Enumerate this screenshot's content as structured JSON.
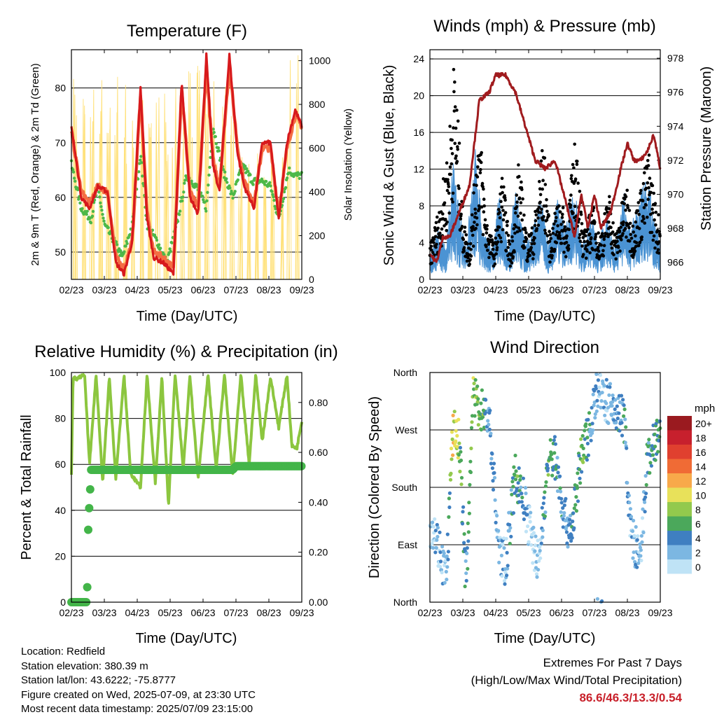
{
  "chart_data": [
    {
      "type": "line",
      "title": "Temperature (F)",
      "xlabel": "Time (Day/UTC)",
      "ylabel": "2m & 9m T (Red, Orange) & 2m Td (Green)",
      "y2label": "Solar Insolation (Yellow)",
      "ylim": [
        45,
        87
      ],
      "y2lim": [
        0,
        1050
      ],
      "xticks": [
        "02/23",
        "03/23",
        "04/23",
        "05/23",
        "06/23",
        "07/23",
        "08/23",
        "09/23"
      ],
      "yticks": [
        50,
        60,
        70,
        80
      ],
      "y2ticks": [
        0,
        200,
        400,
        600,
        800,
        1000
      ],
      "grid": true,
      "series": [
        {
          "name": "2m T",
          "color": "#d7191c",
          "x": [
            0,
            0.3,
            0.55,
            0.8,
            1.1,
            1.35,
            1.6,
            1.85,
            2.1,
            2.3,
            2.5,
            2.8,
            3.1,
            3.35,
            3.6,
            3.85,
            4.1,
            4.3,
            4.5,
            4.8,
            5.05,
            5.25,
            5.55,
            5.8,
            6.05,
            6.3,
            6.55,
            6.8,
            7.0
          ],
          "y": [
            73,
            60,
            58,
            62,
            61,
            48,
            46,
            52,
            80,
            56,
            49,
            48,
            46,
            81,
            60,
            57,
            86,
            66,
            61,
            86,
            68,
            62,
            58,
            70,
            70,
            56,
            70,
            76,
            73
          ]
        },
        {
          "name": "9m T",
          "color": "#f46d43",
          "x": [
            0,
            0.3,
            0.55,
            0.8,
            1.1,
            1.35,
            1.6,
            1.85,
            2.1,
            2.3,
            2.5,
            2.8,
            3.1,
            3.35,
            3.6,
            3.85,
            4.1,
            4.3,
            4.5,
            4.8,
            5.05,
            5.25,
            5.55,
            5.8,
            6.05,
            6.3,
            6.55,
            6.8,
            7.0
          ],
          "y": [
            72,
            61,
            59,
            62,
            61,
            49,
            47,
            52,
            79,
            57,
            50,
            49,
            47,
            80,
            61,
            58,
            84,
            67,
            62,
            84,
            69,
            63,
            59,
            69,
            69,
            57,
            69,
            75,
            73
          ]
        },
        {
          "name": "2m Td",
          "color": "#4db848",
          "x": [
            0,
            0.3,
            0.6,
            0.8,
            1.0,
            1.3,
            1.55,
            1.85,
            2.1,
            2.3,
            2.6,
            2.9,
            3.2,
            3.5,
            3.8,
            4.1,
            4.3,
            4.6,
            4.9,
            5.2,
            5.5,
            5.8,
            6.05,
            6.3,
            6.6,
            6.8,
            7.0
          ],
          "y": [
            66,
            58,
            56,
            62,
            55,
            52,
            49,
            55,
            68,
            55,
            52,
            48,
            55,
            64,
            62,
            58,
            73,
            65,
            60,
            66,
            63,
            63,
            62,
            56,
            65,
            64,
            64
          ]
        },
        {
          "name": "Solar Insolation",
          "color": "#ffe17a",
          "axis": "y2",
          "x": [
            0,
            0.25,
            0.5,
            0.75,
            1.0,
            1.25,
            1.5,
            1.75,
            2.0,
            2.25,
            2.5,
            2.75,
            3.0,
            3.25,
            3.5,
            3.75,
            4.0,
            4.25,
            4.5,
            4.75,
            5.0,
            5.25,
            5.5,
            5.75,
            6.0,
            6.25,
            6.5,
            6.75,
            7.0
          ],
          "y": [
            0,
            950,
            0,
            950,
            0,
            980,
            0,
            920,
            0,
            980,
            0,
            880,
            0,
            910,
            0,
            990,
            0,
            940,
            0,
            900,
            0,
            560,
            0,
            590,
            0,
            580,
            0,
            1050,
            0
          ]
        }
      ]
    },
    {
      "type": "scatter",
      "title": "Winds (mph) & Pressure (mb)",
      "xlabel": "Time (Day/UTC)",
      "ylabel": "Sonic Wind & Gust (Blue, Black)",
      "y2label": "Station Pressure (Maroon)",
      "ylim": [
        0,
        25
      ],
      "y2lim": [
        965,
        978.5
      ],
      "xticks": [
        "02/23",
        "03/23",
        "04/23",
        "05/23",
        "06/23",
        "07/23",
        "08/23",
        "09/23"
      ],
      "yticks": [
        0,
        4,
        8,
        12,
        16,
        20,
        24
      ],
      "y2ticks": [
        966,
        968,
        970,
        972,
        974,
        976,
        978
      ],
      "grid": true,
      "series": [
        {
          "name": "Sonic Wind",
          "color": "#4b93d3",
          "x": [
            0,
            0.25,
            0.5,
            0.7,
            0.9,
            1.1,
            1.4,
            1.6,
            1.9,
            2.1,
            2.4,
            2.6,
            2.9,
            3.1,
            3.4,
            3.6,
            3.9,
            4.1,
            4.4,
            4.6,
            4.9,
            5.1,
            5.4,
            5.6,
            5.9,
            6.1,
            6.4,
            6.6,
            6.9,
            7.0
          ],
          "y": [
            1.5,
            3,
            2,
            7,
            4,
            2,
            8,
            3,
            2,
            5,
            1.5,
            6,
            2,
            3,
            5,
            2,
            5,
            3,
            6,
            2,
            4,
            2,
            4,
            2,
            5,
            3,
            5,
            6,
            3,
            2
          ]
        },
        {
          "name": "Gust",
          "color": "#000000",
          "x": [
            0,
            0.3,
            0.55,
            0.75,
            1.0,
            1.2,
            1.5,
            1.7,
            1.95,
            2.2,
            2.45,
            2.7,
            2.95,
            3.15,
            3.45,
            3.65,
            3.95,
            4.15,
            4.45,
            4.65,
            4.95,
            5.15,
            5.45,
            5.65,
            5.95,
            6.15,
            6.45,
            6.65,
            6.9
          ],
          "y": [
            3,
            7,
            12,
            21,
            6,
            3,
            15,
            6,
            3,
            10,
            2.5,
            11,
            4,
            5,
            13,
            4,
            8,
            5,
            14,
            4,
            7,
            4,
            8,
            4,
            9,
            5,
            9,
            12,
            6
          ]
        },
        {
          "name": "Station Pressure",
          "color": "#a01b1e",
          "axis": "y2",
          "type": "line",
          "x": [
            0,
            0.2,
            0.4,
            0.6,
            0.8,
            1.0,
            1.2,
            1.5,
            1.8,
            2.0,
            2.3,
            2.6,
            2.9,
            3.2,
            3.5,
            3.8,
            4.0,
            4.2,
            4.4,
            4.6,
            4.8,
            5.0,
            5.2,
            5.5,
            5.8,
            6.0,
            6.2,
            6.4,
            6.6,
            6.8,
            7.0
          ],
          "y": [
            966.5,
            966,
            967.5,
            967.5,
            968.5,
            969.5,
            970.5,
            975.5,
            976,
            977,
            977,
            976,
            974,
            972,
            971.5,
            972,
            970.5,
            969,
            967.5,
            970,
            968,
            970,
            968,
            969,
            971.5,
            973,
            972,
            972,
            972.5,
            973.5,
            971.5
          ]
        }
      ]
    },
    {
      "type": "line",
      "title": "Relative Humidity (%) & Precipitation (in)",
      "xlabel": "Time (Day/UTC)",
      "ylabel": "Percent & Total Rainfall",
      "ylim": [
        0,
        100
      ],
      "y2lim": [
        0,
        0.92
      ],
      "xticks": [
        "02/23",
        "03/23",
        "04/23",
        "05/23",
        "06/23",
        "07/23",
        "08/23",
        "09/23"
      ],
      "yticks": [
        0,
        20,
        40,
        60,
        80,
        100
      ],
      "y2ticks": [
        "0.00",
        "0.20",
        "0.40",
        "0.60",
        "0.80"
      ],
      "grid": true,
      "series": [
        {
          "name": "Relative Humidity",
          "color": "#8cc63f",
          "x": [
            0,
            0.05,
            0.15,
            0.4,
            0.55,
            0.75,
            0.95,
            1.15,
            1.35,
            1.6,
            1.8,
            2.1,
            2.3,
            2.55,
            2.75,
            2.95,
            3.15,
            3.4,
            3.6,
            3.85,
            4.15,
            4.4,
            4.65,
            4.9,
            5.15,
            5.4,
            5.6,
            5.8,
            6.05,
            6.3,
            6.55,
            6.7,
            6.85,
            7.0
          ],
          "y": [
            56,
            98,
            97,
            99,
            60,
            99,
            52,
            98,
            54,
            99,
            56,
            50,
            99,
            52,
            98,
            42,
            99,
            58,
            99,
            54,
            99,
            58,
            99,
            55,
            99,
            60,
            99,
            70,
            98,
            76,
            99,
            68,
            67,
            79
          ]
        },
        {
          "name": "Total Precipitation",
          "color": "#43b549",
          "axis": "y2",
          "x": [
            0,
            0.45,
            0.48,
            0.5,
            0.52,
            0.55,
            0.6,
            1.0,
            2.0,
            3.0,
            4.0,
            4.9,
            5.0,
            6.0,
            7.0
          ],
          "y": [
            0,
            0,
            0.06,
            0.25,
            0.33,
            0.4,
            0.53,
            0.53,
            0.53,
            0.53,
            0.53,
            0.53,
            0.545,
            0.545,
            0.545
          ]
        }
      ]
    },
    {
      "type": "scatter",
      "title": "Wind Direction",
      "xlabel": "Time (Day/UTC)",
      "ylabel": "Direction (Colored By Speed)",
      "xticks": [
        "02/23",
        "03/23",
        "04/23",
        "05/23",
        "06/23",
        "07/23",
        "08/23",
        "09/23"
      ],
      "yticks": [
        "North",
        "East",
        "South",
        "West",
        "North"
      ],
      "ylim": [
        0,
        360
      ],
      "grid": true,
      "colorbar": {
        "title": "mph",
        "labels": [
          "20+",
          "18",
          "16",
          "14",
          "12",
          "10",
          "8",
          "6",
          "4",
          "2",
          "0"
        ],
        "colors": [
          "#9a1a1f",
          "#c7202d",
          "#e0402f",
          "#f06b35",
          "#f8a94a",
          "#e8e15a",
          "#93c94d",
          "#4ba85b",
          "#3f7fc1",
          "#7cb7e2",
          "#bfe3f6"
        ]
      },
      "series": [
        {
          "name": "Direction",
          "x": [
            0.1,
            0.3,
            0.5,
            0.7,
            0.9,
            1.1,
            1.3,
            1.6,
            1.8,
            2.1,
            2.3,
            2.6,
            2.8,
            3.1,
            3.3,
            3.6,
            3.8,
            4.1,
            4.3,
            4.6,
            4.8,
            5.1,
            5.3,
            5.6,
            5.9,
            6.1,
            6.4,
            6.6,
            6.9
          ],
          "y": [
            120,
            80,
            40,
            270,
            250,
            20,
            320,
            300,
            290,
            80,
            60,
            200,
            170,
            100,
            60,
            220,
            230,
            130,
            110,
            230,
            260,
            340,
            320,
            300,
            290,
            110,
            60,
            220,
            260
          ],
          "speed": [
            1,
            2,
            1,
            11,
            7,
            3,
            8,
            6,
            3,
            2,
            2,
            6,
            4,
            1,
            1,
            6,
            5,
            3,
            4,
            6,
            5,
            2,
            2,
            3,
            4,
            2,
            1,
            4,
            5
          ]
        }
      ]
    }
  ],
  "info": {
    "location": "Location: Redfield",
    "elevation": "Station elevation: 380.39 m",
    "latlon": "Station lat/lon: 43.6222; -75.8777",
    "created": "Figure created on Wed, 2025-07-09, at 23:30 UTC",
    "recent": "Most recent data timestamp: 2025/07/09 23:15:00"
  },
  "extremes": {
    "heading": "Extremes For Past 7 Days",
    "subheading": "(High/Low/Max Wind/Total Precipitation)",
    "values": "86.6/46.3/13.3/0.54"
  }
}
